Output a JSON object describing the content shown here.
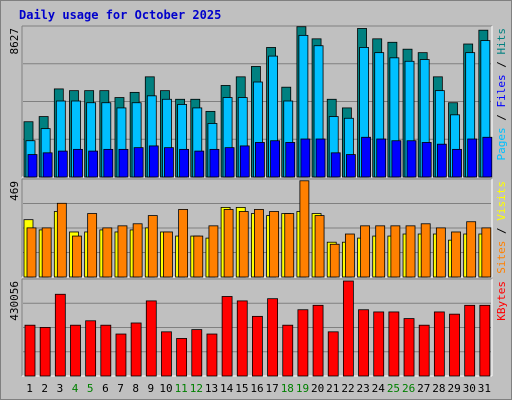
{
  "chart_data": {
    "title": "Daily usage for October 2025",
    "days": [
      "1",
      "2",
      "3",
      "4",
      "5",
      "6",
      "7",
      "8",
      "9",
      "10",
      "11",
      "12",
      "13",
      "14",
      "15",
      "16",
      "17",
      "18",
      "19",
      "20",
      "21",
      "22",
      "23",
      "24",
      "25",
      "26",
      "27",
      "28",
      "29",
      "30",
      "31"
    ],
    "weekend_days": [
      "4",
      "5",
      "11",
      "12",
      "18",
      "19",
      "25",
      "26"
    ],
    "colors": {
      "title": "#0000cc",
      "hits": "#008080",
      "files": "#00c0ff",
      "pages": "#0000ff",
      "visits": "#ffff00",
      "sites": "#ff8000",
      "kbytes": "#ff0000",
      "weekday_label": "#000000",
      "weekend_label": "#008000"
    },
    "panels": [
      {
        "type": "bar",
        "id": "hits-files-pages",
        "axis_label": "8627",
        "ymax": 8627,
        "right_labels": [
          {
            "text": "Pages",
            "color": "#00c0ff"
          },
          {
            "text": " / ",
            "color": "#000000"
          },
          {
            "text": "Files",
            "color": "#0000ff"
          },
          {
            "text": " / ",
            "color": "#000000"
          },
          {
            "text": "Hits",
            "color": "#008080"
          }
        ],
        "series": [
          {
            "name": "Hits",
            "color": "#008080",
            "values": [
              3200,
              3500,
              5100,
              5000,
              5000,
              5000,
              4600,
              4900,
              5800,
              5000,
              4500,
              4500,
              3800,
              5300,
              5800,
              6400,
              7500,
              5200,
              8700,
              8000,
              4500,
              4000,
              8600,
              8000,
              7800,
              7400,
              7200,
              5800,
              4300,
              7700,
              8500
            ]
          },
          {
            "name": "Files",
            "color": "#00c0ff",
            "values": [
              2100,
              2800,
              4400,
              4400,
              4300,
              4300,
              4000,
              4300,
              4700,
              4500,
              4200,
              4000,
              3100,
              4600,
              4600,
              5500,
              7000,
              4400,
              8200,
              7600,
              3500,
              3400,
              7500,
              7200,
              6900,
              6700,
              6800,
              5000,
              3600,
              7200,
              7900
            ]
          },
          {
            "name": "Pages",
            "color": "#0000ff",
            "values": [
              1300,
              1400,
              1500,
              1600,
              1500,
              1600,
              1600,
              1700,
              1800,
              1700,
              1600,
              1500,
              1600,
              1700,
              1800,
              2000,
              2100,
              2000,
              2200,
              2200,
              1400,
              1300,
              2300,
              2200,
              2100,
              2100,
              2000,
              1900,
              1600,
              2200,
              2300
            ]
          }
        ]
      },
      {
        "type": "bar",
        "id": "visits-sites",
        "axis_label": "469",
        "ymax": 469,
        "right_labels": [
          {
            "text": "Sites",
            "color": "#ff8000"
          },
          {
            "text": " / ",
            "color": "#000000"
          },
          {
            "text": "Visits",
            "color": "#ffff00"
          }
        ],
        "series": [
          {
            "name": "Visits",
            "color": "#ffff00",
            "values": [
              280,
              230,
              320,
              220,
              220,
              230,
              220,
              230,
              240,
              220,
              200,
              200,
              190,
              340,
              340,
              310,
              300,
              310,
              320,
              310,
              170,
              170,
              190,
              200,
              200,
              210,
              210,
              210,
              180,
              210,
              210
            ]
          },
          {
            "name": "Sites",
            "color": "#ff8000",
            "values": [
              240,
              240,
              360,
              200,
              310,
              240,
              250,
              260,
              300,
              220,
              330,
              200,
              250,
              330,
              320,
              330,
              320,
              310,
              470,
              300,
              160,
              210,
              250,
              250,
              250,
              250,
              260,
              240,
              220,
              270,
              240
            ]
          }
        ]
      },
      {
        "type": "bar",
        "id": "kbytes",
        "axis_label": "430056",
        "ymax": 430056,
        "right_labels": [
          {
            "text": "KBytes",
            "color": "#ff0000"
          }
        ],
        "series": [
          {
            "name": "KBytes",
            "color": "#ff0000",
            "values": [
              230000,
              220000,
              370000,
              230000,
              250000,
              230000,
              190000,
              240000,
              340000,
              200000,
              170000,
              210000,
              190000,
              360000,
              340000,
              270000,
              350000,
              230000,
              300000,
              320000,
              200000,
              430000,
              300000,
              290000,
              290000,
              260000,
              230000,
              290000,
              280000,
              320000,
              320000
            ]
          }
        ]
      }
    ]
  }
}
